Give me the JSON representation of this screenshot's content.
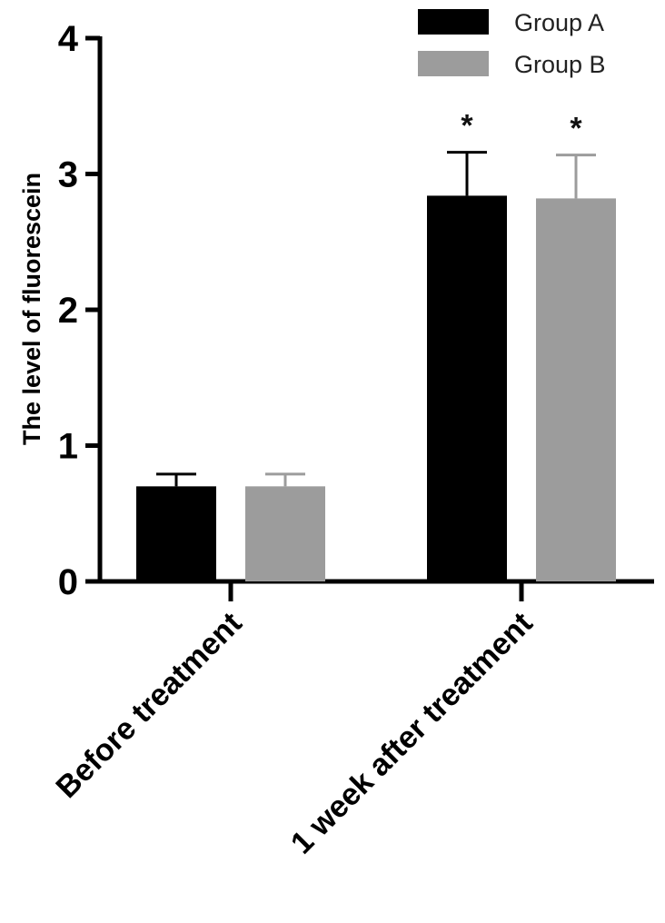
{
  "chart_data": {
    "type": "bar",
    "categories": [
      "Before treatment",
      "1 week after treatment"
    ],
    "series": [
      {
        "name": "Group A",
        "values": [
          0.7,
          2.84
        ],
        "errors": [
          0.09,
          0.32
        ],
        "color": "#000000",
        "error_color": "#000000"
      },
      {
        "name": "Group B",
        "values": [
          0.7,
          2.82
        ],
        "errors": [
          0.09,
          0.32
        ],
        "color": "#9c9c9c",
        "error_color": "#9c9c9c"
      }
    ],
    "annotations": [
      {
        "category": 1,
        "series": 0,
        "text": "*"
      },
      {
        "category": 1,
        "series": 1,
        "text": "*"
      }
    ],
    "title": "",
    "xlabel": "",
    "ylabel": "The level of fluorescein",
    "ylim": [
      0,
      4
    ],
    "yticks": [
      0,
      1,
      2,
      3,
      4
    ],
    "grid": false,
    "legend_position": "top-right"
  }
}
